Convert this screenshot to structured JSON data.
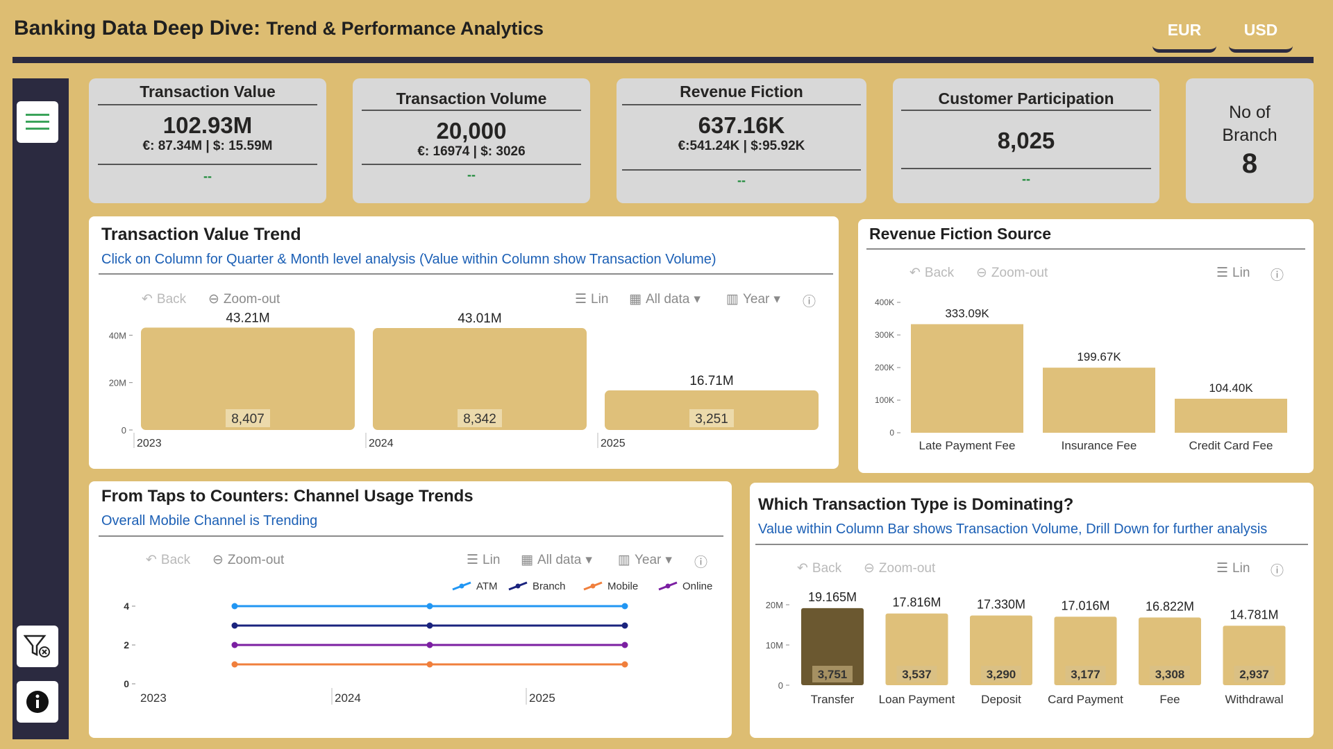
{
  "header": {
    "title_main": "Banking Data Deep Dive:",
    "title_sub": "Trend & Performance Analytics",
    "currency_buttons": [
      "EUR",
      "USD"
    ]
  },
  "colors": {
    "background": "#ddbd72",
    "navy": "#2b2a40",
    "bar": "#dfc07a",
    "bar_selected": "#6b5830",
    "atm": "#2196f3",
    "branch": "#1a237e",
    "mobile": "#f07f3c",
    "online": "#7b1fa2"
  },
  "kpis": {
    "transaction_value": {
      "title": "Transaction Value",
      "value": "102.93M",
      "sub": "€: 87.34M | $: 15.59M",
      "trend": "--"
    },
    "transaction_volume": {
      "title": "Transaction Volume",
      "value": "20,000",
      "sub": "€: 16974 | $: 3026",
      "trend": "--"
    },
    "revenue_fiction": {
      "title": "Revenue Fiction",
      "value": "637.16K",
      "sub": "€:541.24K | $:95.92K",
      "trend": "--"
    },
    "customer_participation": {
      "title": "Customer Participation",
      "value": "8,025",
      "trend": "--"
    },
    "branches": {
      "title_line1": "No of",
      "title_line2": "Branch",
      "value": "8"
    }
  },
  "toolbar": {
    "back": "Back",
    "zoom_out": "Zoom-out",
    "lin": "Lin",
    "all_data": "All data",
    "year": "Year"
  },
  "panels": {
    "tv_trend": {
      "title": "Transaction Value Trend",
      "subtitle": "Click on Column for Quarter & Month level analysis (Value within Column show Transaction Volume)"
    },
    "rev_source": {
      "title": "Revenue Fiction Source"
    },
    "channel": {
      "title": "From Taps to Counters: Channel Usage Trends",
      "subtitle": "Overall Mobile Channel is Trending"
    },
    "tx_type": {
      "title": "Which Transaction Type is Dominating?",
      "subtitle": "Value within Column Bar shows Transaction Volume, Drill Down for further analysis"
    }
  },
  "chart_data": [
    {
      "id": "tv_trend",
      "type": "bar",
      "categories": [
        "2023",
        "2024",
        "2025"
      ],
      "values": [
        43.21,
        43.01,
        16.71
      ],
      "value_labels": [
        "43.21M",
        "43.01M",
        "16.71M"
      ],
      "inner_labels": [
        "8,407",
        "8,342",
        "3,251"
      ],
      "y_ticks": [
        "0",
        "20M",
        "40M"
      ],
      "ylim": [
        0,
        48
      ]
    },
    {
      "id": "rev_source",
      "type": "bar",
      "categories": [
        "Late Payment Fee",
        "Insurance Fee",
        "Credit Card Fee"
      ],
      "values": [
        333.09,
        199.67,
        104.4
      ],
      "value_labels": [
        "333.09K",
        "199.67K",
        "104.40K"
      ],
      "y_ticks": [
        "0",
        "100K",
        "200K",
        "300K",
        "400K"
      ],
      "ylim": [
        0,
        400
      ]
    },
    {
      "id": "channel",
      "type": "line",
      "x": [
        "2023",
        "2024",
        "2025"
      ],
      "series": [
        {
          "name": "ATM",
          "values": [
            4,
            4,
            4
          ]
        },
        {
          "name": "Branch",
          "values": [
            3,
            3,
            3
          ]
        },
        {
          "name": "Mobile",
          "values": [
            1,
            1,
            1
          ]
        },
        {
          "name": "Online",
          "values": [
            2,
            2,
            2
          ]
        }
      ],
      "y_ticks": [
        "0",
        "2",
        "4"
      ],
      "ylim": [
        0,
        4
      ]
    },
    {
      "id": "tx_type",
      "type": "bar",
      "categories": [
        "Transfer",
        "Loan Payment",
        "Deposit",
        "Card Payment",
        "Fee",
        "Withdrawal"
      ],
      "values": [
        19.165,
        17.816,
        17.33,
        17.016,
        16.822,
        14.781
      ],
      "value_labels": [
        "19.165M",
        "17.816M",
        "17.330M",
        "17.016M",
        "16.822M",
        "14.781M"
      ],
      "inner_labels": [
        "3,751",
        "3,537",
        "3,290",
        "3,177",
        "3,308",
        "2,937"
      ],
      "y_ticks": [
        "0",
        "10M",
        "20M"
      ],
      "ylim": [
        0,
        20
      ]
    }
  ]
}
